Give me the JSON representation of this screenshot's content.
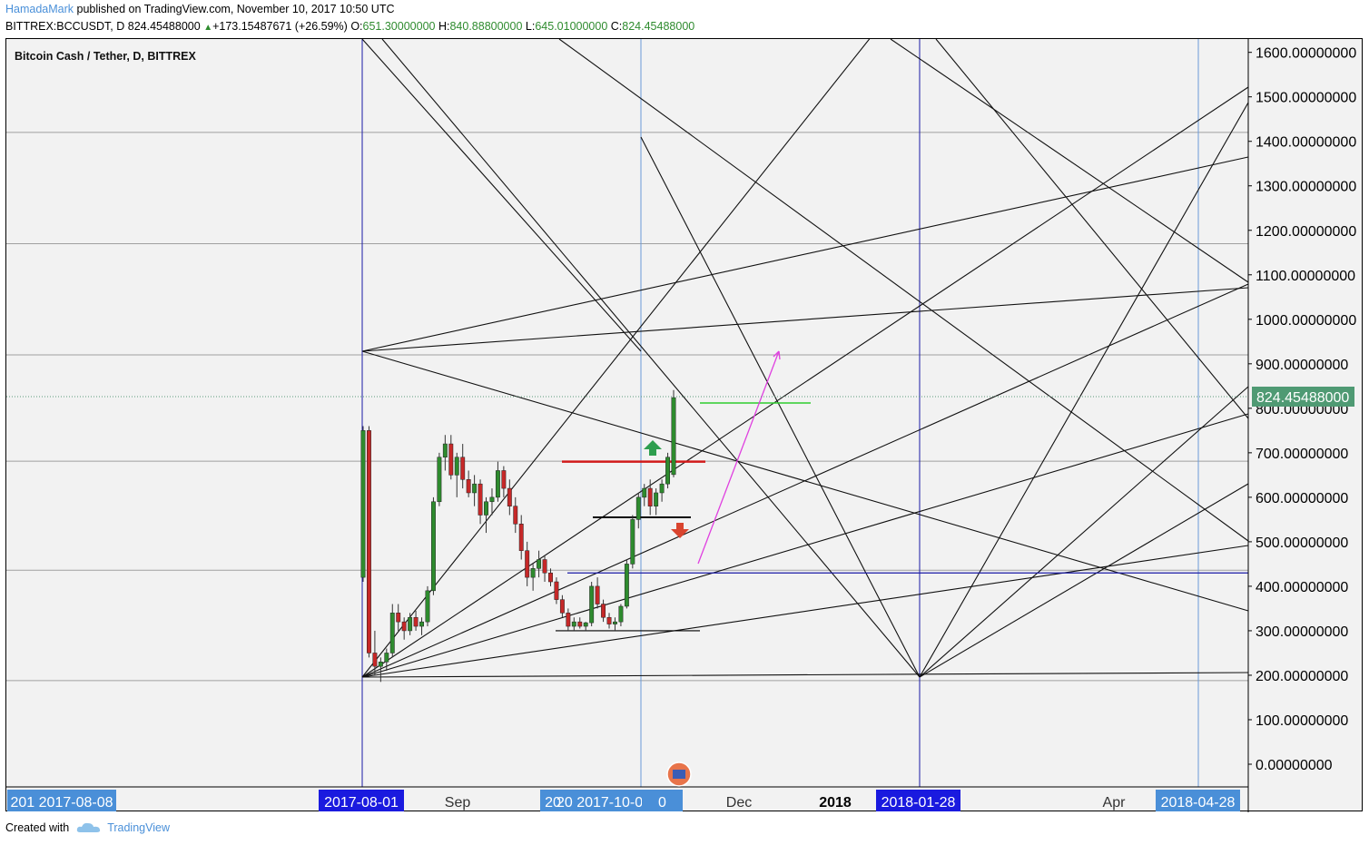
{
  "header": {
    "user": "HamadaMark",
    "published_text": "published on TradingView.com, November 10, 2017 10:50 UTC",
    "symbol_line": "BITTREX:BCCUSDT, D",
    "last": "824.45488000",
    "change": "+173.15487671 (+26.59%)",
    "o_label": "O:",
    "o_value": "651.30000000",
    "h_label": "H:",
    "h_value": "840.88800000",
    "l_label": "L:",
    "l_value": "645.01000000",
    "c_label": "C:",
    "c_value": "824.45488000"
  },
  "footer": {
    "created_with": "Created with",
    "brand": "TradingView"
  },
  "chart_data": {
    "type": "candlestick",
    "title": "Bitcoin Cash / Tether, D, BITTREX",
    "y_range": [
      0,
      1600
    ],
    "y_ticks": [
      "1600.00000000",
      "1500.00000000",
      "1400.00000000",
      "1300.00000000",
      "1200.00000000",
      "1100.00000000",
      "1000.00000000",
      "900.00000000",
      "800.00000000",
      "700.00000000",
      "600.00000000",
      "500.00000000",
      "400.00000000",
      "300.00000000",
      "200.00000000",
      "100.00000000",
      "0.00000000"
    ],
    "current_price_label": "824.45488000",
    "x_labels": [
      {
        "text": "201 2017-08-08",
        "highlight": "lightblue"
      },
      {
        "text": "2017-08-01",
        "highlight": "blue"
      },
      {
        "text": "Sep",
        "highlight": "none"
      },
      {
        "text": "20",
        "highlight": "lightblue"
      },
      {
        "text": "20 2017-10-01",
        "highlight": "lightblue"
      },
      {
        "text": "0",
        "highlight": "lightblue"
      },
      {
        "text": "Dec",
        "highlight": "none"
      },
      {
        "text": "2018",
        "highlight": "bold"
      },
      {
        "text": "2018-01-28",
        "highlight": "blue"
      },
      {
        "text": "Apr",
        "highlight": "none"
      },
      {
        "text": "2018-04-28",
        "highlight": "lightblue"
      }
    ],
    "price_levels": [
      {
        "price": 430,
        "color": "#1a1aa6",
        "role": "horizontal support line"
      },
      {
        "price": 680,
        "color": "#d11a1a",
        "role": "resistance segment"
      },
      {
        "price": 555,
        "color": "#000000",
        "role": "pivot segment"
      },
      {
        "price": 300,
        "color": "#000000",
        "role": "base segment"
      },
      {
        "price": 812,
        "color": "#2ecc2e",
        "role": "target segment"
      }
    ],
    "candles_ohlc_approx": [
      [
        420,
        760,
        410,
        750
      ],
      [
        750,
        760,
        240,
        250
      ],
      [
        250,
        300,
        200,
        220
      ],
      [
        220,
        240,
        185,
        230
      ],
      [
        230,
        260,
        210,
        250
      ],
      [
        250,
        360,
        240,
        340
      ],
      [
        340,
        360,
        300,
        320
      ],
      [
        320,
        330,
        280,
        300
      ],
      [
        300,
        340,
        290,
        330
      ],
      [
        330,
        345,
        300,
        310
      ],
      [
        310,
        330,
        290,
        320
      ],
      [
        320,
        400,
        310,
        390
      ],
      [
        390,
        600,
        380,
        590
      ],
      [
        590,
        700,
        580,
        690
      ],
      [
        690,
        740,
        660,
        720
      ],
      [
        720,
        740,
        640,
        650
      ],
      [
        650,
        700,
        600,
        690
      ],
      [
        690,
        720,
        620,
        640
      ],
      [
        640,
        660,
        600,
        610
      ],
      [
        610,
        650,
        580,
        630
      ],
      [
        630,
        640,
        540,
        560
      ],
      [
        560,
        600,
        520,
        590
      ],
      [
        590,
        620,
        560,
        600
      ],
      [
        600,
        680,
        590,
        660
      ],
      [
        660,
        670,
        600,
        620
      ],
      [
        620,
        640,
        560,
        580
      ],
      [
        580,
        600,
        520,
        540
      ],
      [
        540,
        560,
        460,
        480
      ],
      [
        480,
        500,
        400,
        420
      ],
      [
        420,
        450,
        390,
        440
      ],
      [
        440,
        480,
        420,
        460
      ],
      [
        460,
        470,
        410,
        430
      ],
      [
        430,
        440,
        400,
        410
      ],
      [
        410,
        420,
        360,
        370
      ],
      [
        370,
        380,
        330,
        340
      ],
      [
        340,
        350,
        300,
        310
      ],
      [
        310,
        330,
        300,
        320
      ],
      [
        320,
        330,
        305,
        310
      ],
      [
        310,
        320,
        300,
        318
      ],
      [
        318,
        410,
        310,
        400
      ],
      [
        400,
        420,
        350,
        360
      ],
      [
        360,
        370,
        320,
        330
      ],
      [
        330,
        340,
        305,
        315
      ],
      [
        315,
        330,
        300,
        320
      ],
      [
        320,
        360,
        310,
        355
      ],
      [
        355,
        460,
        350,
        450
      ],
      [
        450,
        560,
        440,
        550
      ],
      [
        550,
        610,
        530,
        600
      ],
      [
        600,
        630,
        580,
        620
      ],
      [
        620,
        640,
        560,
        580
      ],
      [
        580,
        620,
        560,
        610
      ],
      [
        610,
        640,
        590,
        630
      ],
      [
        630,
        700,
        620,
        690
      ],
      [
        651,
        841,
        645,
        824
      ]
    ],
    "annotations": [
      "green up arrow",
      "red down arrow",
      "magenta projection arrow",
      "gann fan lines"
    ]
  }
}
